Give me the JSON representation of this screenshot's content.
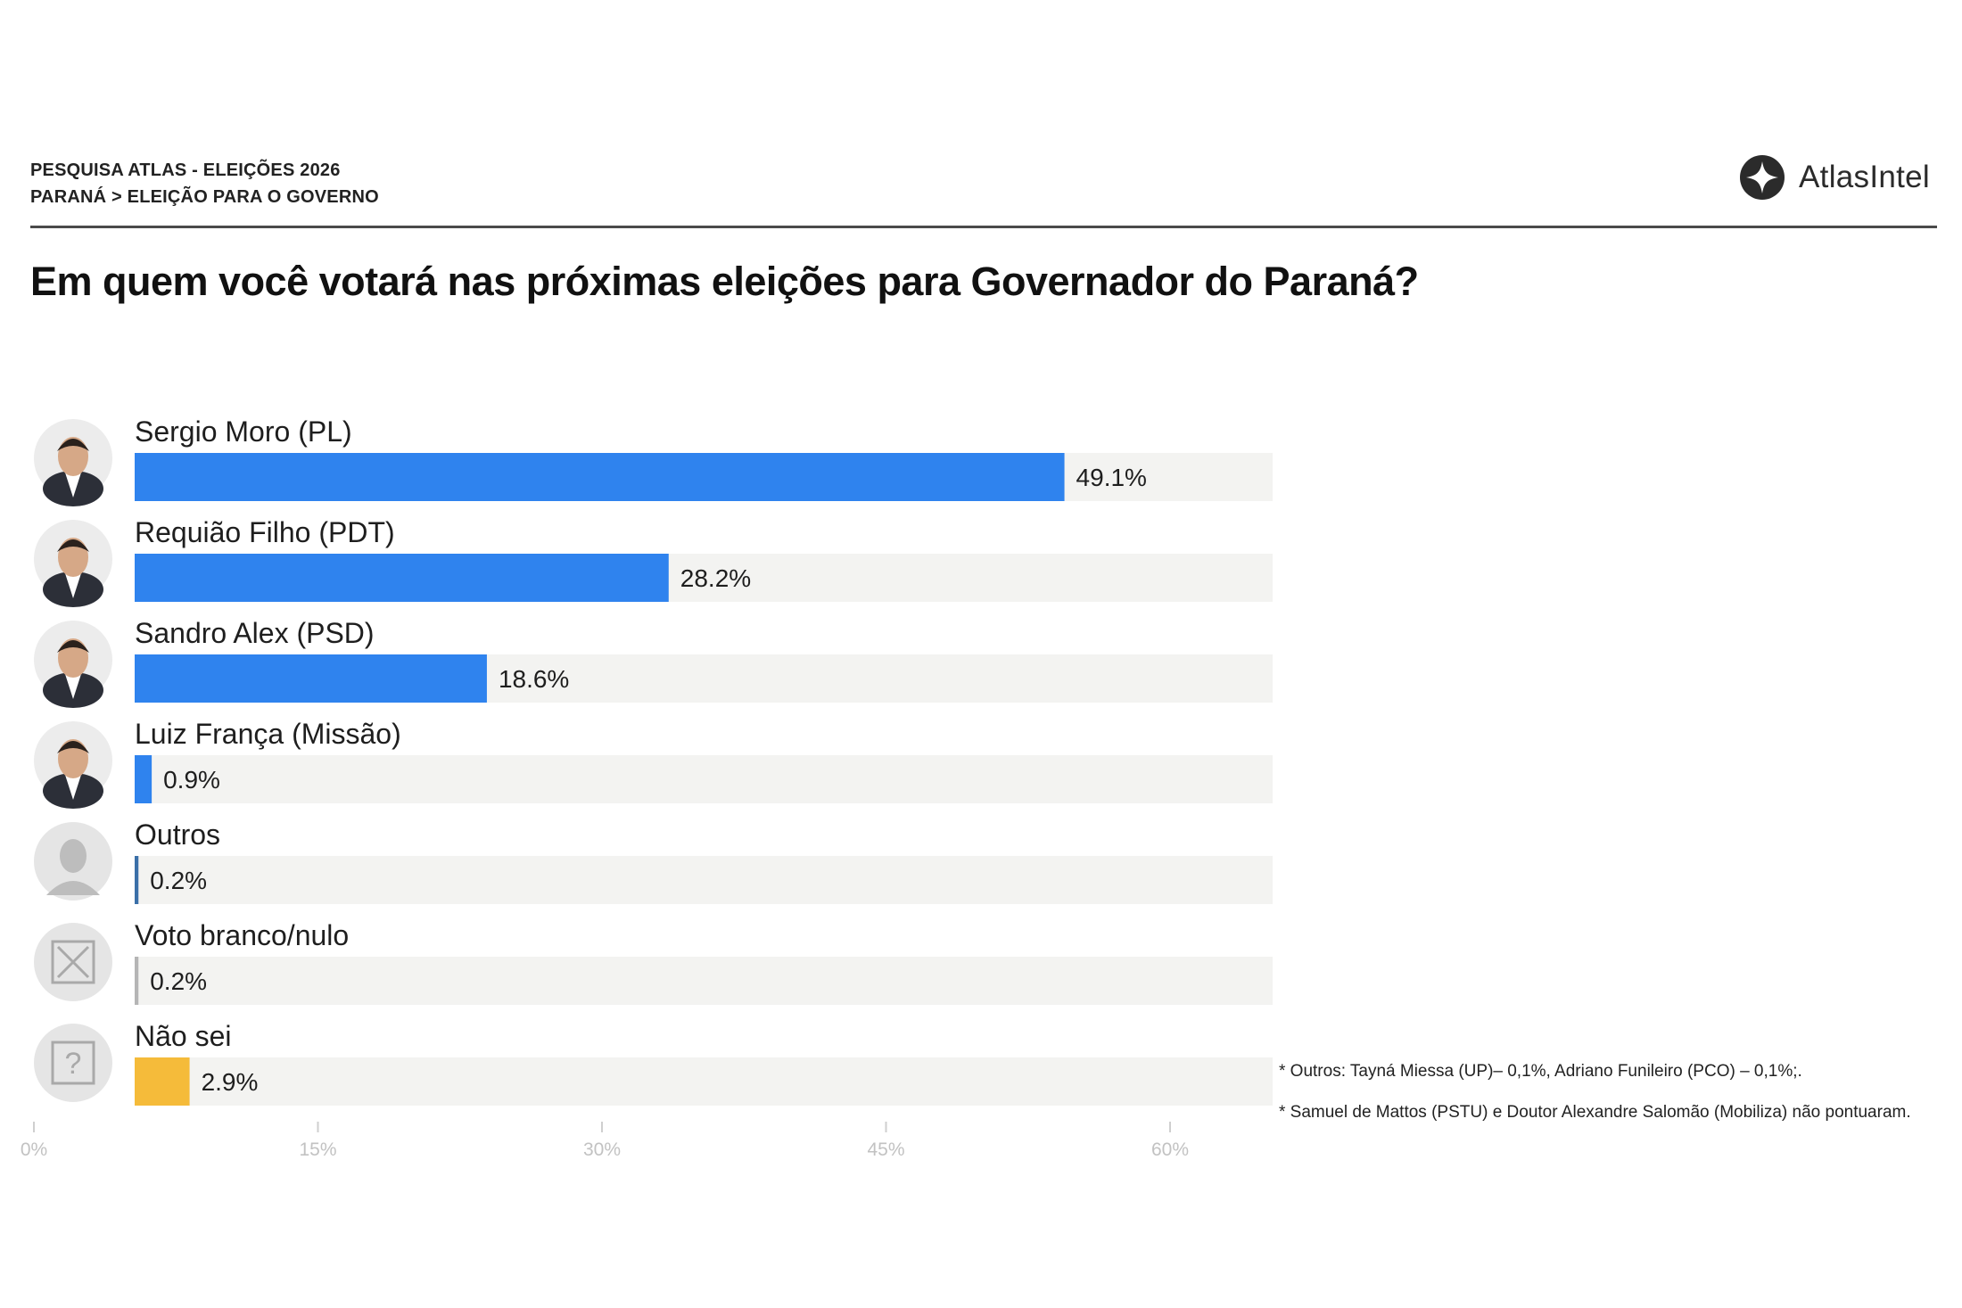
{
  "header": {
    "line1": "PESQUISA ATLAS - ELEIÇÕES 2026",
    "line2": "PARANÁ > ELEIÇÃO PARA O GOVERNO"
  },
  "brand": {
    "name": "AtlasIntel",
    "icon": "atlasintel-logo-icon"
  },
  "title": "Em quem você votará nas próximas eleições para Governador do Paraná?",
  "notes": [
    "* Outros: Tayná Miessa (UP)– 0,1%, Adriano Funileiro (PCO) – 0,1%;.",
    "* Samuel de Mattos (PSTU) e Doutor Alexandre Salomão (Mobiliza) não pontuaram."
  ],
  "chart_data": {
    "type": "bar",
    "orientation": "horizontal",
    "categories": [
      "Sergio Moro (PL)",
      "Requião Filho (PDT)",
      "Sandro Alex (PSD)",
      "Luiz França (Missão)",
      "Outros",
      "Voto branco/nulo",
      "Não sei"
    ],
    "values": [
      49.1,
      28.2,
      18.6,
      0.9,
      0.2,
      0.2,
      2.9
    ],
    "value_labels": [
      "49.1%",
      "28.2%",
      "18.6%",
      "0.9%",
      "0.2%",
      "0.2%",
      "2.9%"
    ],
    "colors": [
      "#2f83ee",
      "#2f83ee",
      "#2f83ee",
      "#2f83ee",
      "#3a6fa8",
      "#b5b5b5",
      "#f5bb3a"
    ],
    "icons": [
      "candidate-photo-icon",
      "candidate-photo-icon",
      "candidate-photo-icon",
      "candidate-photo-icon",
      "person-silhouette-icon",
      "x-box-icon",
      "question-box-icon"
    ],
    "xlim": [
      0,
      60
    ],
    "xticks": [
      0,
      15,
      30,
      45,
      60
    ],
    "xtick_labels": [
      "0%",
      "15%",
      "30%",
      "45%",
      "60%"
    ],
    "track_color": "#f3f3f1",
    "grid": false,
    "legend": "none"
  }
}
